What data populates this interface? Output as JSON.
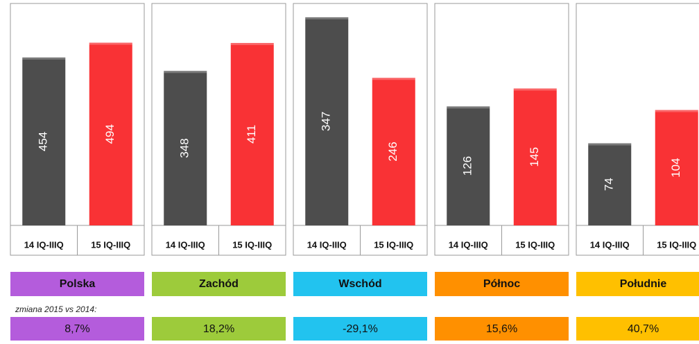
{
  "chart_data": [
    {
      "type": "bar",
      "categories": [
        "14 IQ-IIIQ",
        "15 IQ-IIIQ"
      ],
      "values": [
        454,
        494
      ],
      "colors": [
        "#4d4d4d",
        "#f93235"
      ],
      "ylim": [
        0,
        600
      ],
      "region": "Polska",
      "region_color": "#b45cdc",
      "change": "8,7%"
    },
    {
      "type": "bar",
      "categories": [
        "14 IQ-IIIQ",
        "15 IQ-IIIQ"
      ],
      "values": [
        348,
        411
      ],
      "colors": [
        "#4d4d4d",
        "#f93235"
      ],
      "ylim": [
        0,
        500
      ],
      "region": "Zachód",
      "region_color": "#9dcb3b",
      "change": "18,2%"
    },
    {
      "type": "bar",
      "categories": [
        "14 IQ-IIIQ",
        "15 IQ-IIIQ"
      ],
      "values": [
        347,
        246
      ],
      "colors": [
        "#4d4d4d",
        "#f93235"
      ],
      "ylim": [
        0,
        370
      ],
      "region": "Wschód",
      "region_color": "#22c3ef",
      "change": "-29,1%"
    },
    {
      "type": "bar",
      "categories": [
        "14 IQ-IIIQ",
        "15 IQ-IIIQ"
      ],
      "values": [
        126,
        145
      ],
      "colors": [
        "#4d4d4d",
        "#f93235"
      ],
      "ylim": [
        0,
        235
      ],
      "region": "Północ",
      "region_color": "#ff9000",
      "change": "15,6%"
    },
    {
      "type": "bar",
      "categories": [
        "14 IQ-IIIQ",
        "15 IQ-IIIQ"
      ],
      "values": [
        74,
        104
      ],
      "colors": [
        "#4d4d4d",
        "#f93235"
      ],
      "ylim": [
        0,
        200
      ],
      "region": "Południe",
      "region_color": "#ffc000",
      "change": "40,7%"
    }
  ],
  "note": "zmiana 2015 vs 2014:"
}
